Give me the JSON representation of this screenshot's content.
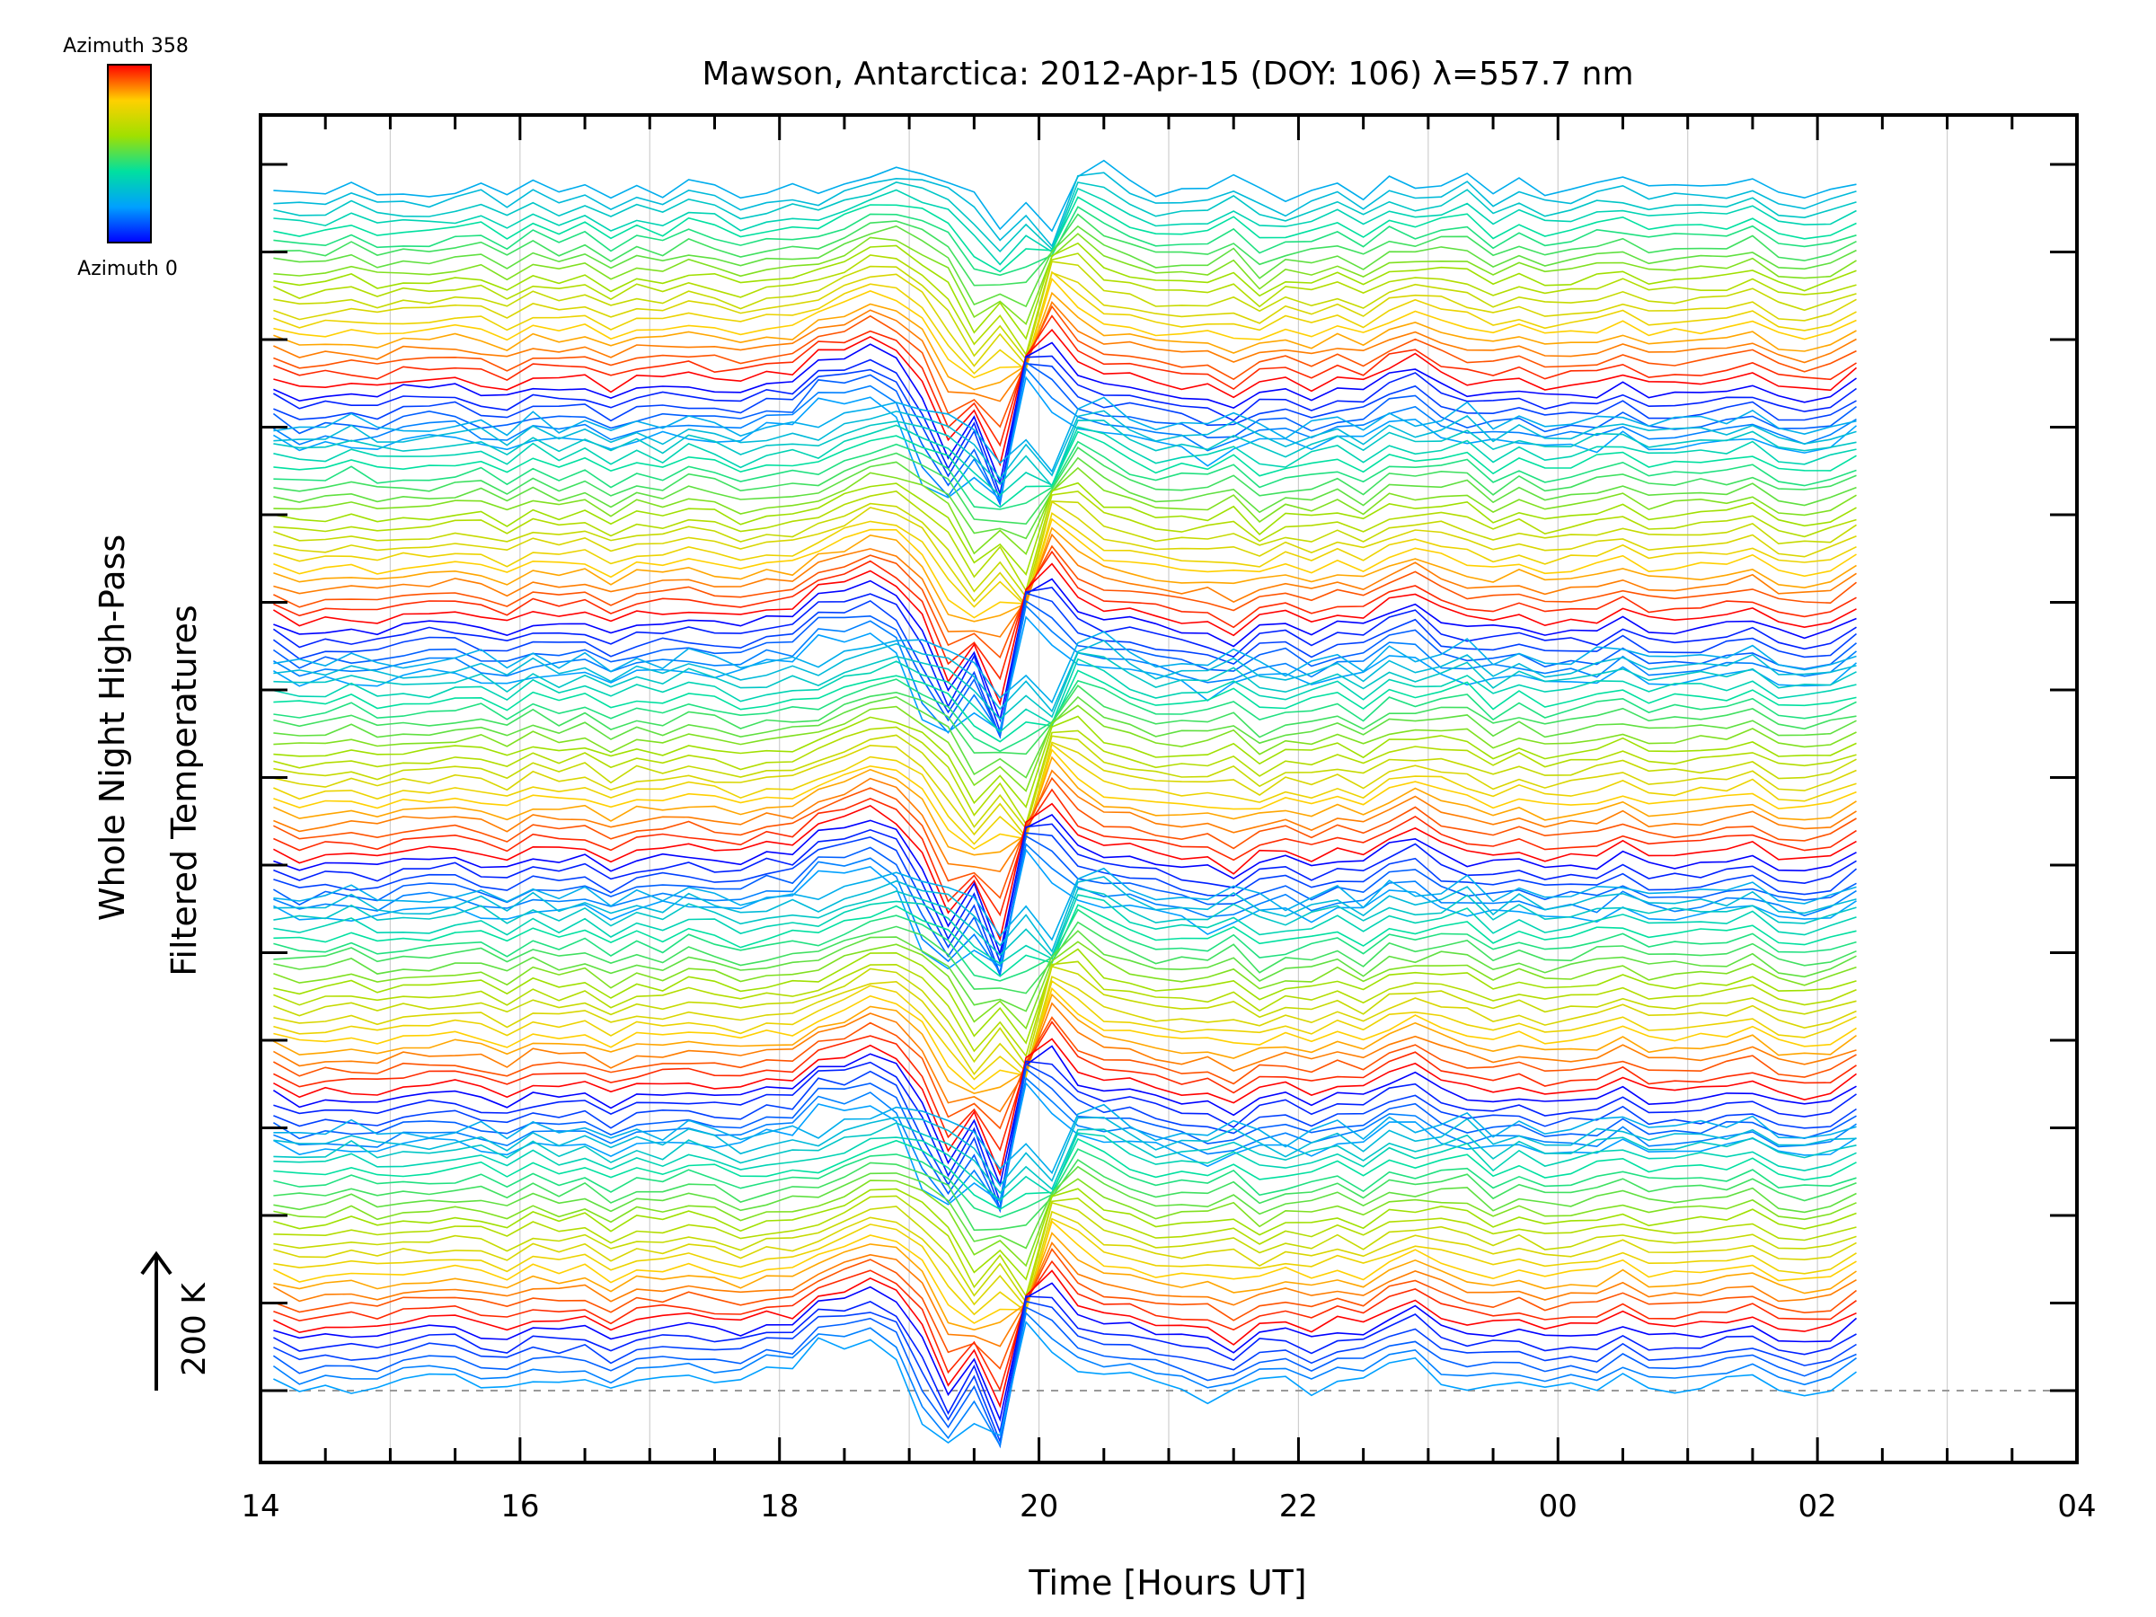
{
  "chart_data": {
    "type": "line",
    "title": "Mawson, Antarctica: 2012-Apr-15 (DOY: 106) λ=557.7 nm",
    "xlabel": "Time [Hours UT]",
    "ylabel_line1": "Whole Night High-Pass",
    "ylabel_line2": "Filtered Temperatures",
    "x_tick_labels": [
      "14",
      "16",
      "18",
      "20",
      "22",
      "00",
      "02",
      "04"
    ],
    "xlim_hours": [
      14,
      28
    ],
    "data_xlim_hours": [
      14.1,
      26.35
    ],
    "grid": "vertical",
    "scale_bar_label": "200 K",
    "colorbar": {
      "top_label": "Azimuth 358",
      "bottom_label": "Azimuth 0",
      "colors": [
        "#0000ff",
        "#00a0ff",
        "#00e0a0",
        "#a0e000",
        "#ffd000",
        "#ff0000"
      ]
    },
    "series_description": "stacked azimuth traces, 5 groups, 26 azimuths each",
    "group_count": 5,
    "traces_per_group": 26
  }
}
